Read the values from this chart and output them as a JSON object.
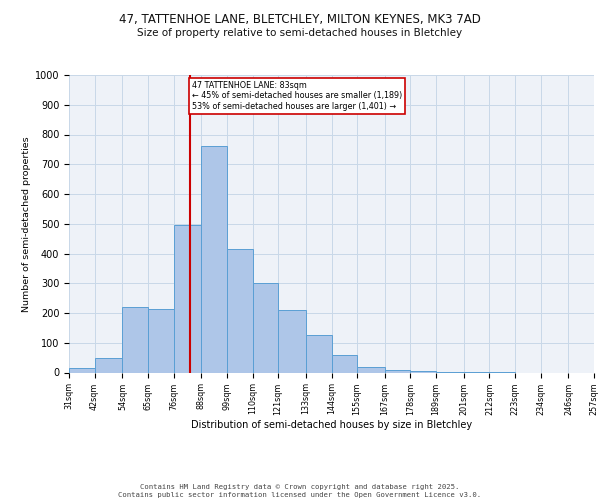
{
  "title1": "47, TATTENHOE LANE, BLETCHLEY, MILTON KEYNES, MK3 7AD",
  "title2": "Size of property relative to semi-detached houses in Bletchley",
  "xlabel": "Distribution of semi-detached houses by size in Bletchley",
  "ylabel": "Number of semi-detached properties",
  "bin_labels": [
    "31sqm",
    "42sqm",
    "54sqm",
    "65sqm",
    "76sqm",
    "88sqm",
    "99sqm",
    "110sqm",
    "121sqm",
    "133sqm",
    "144sqm",
    "155sqm",
    "167sqm",
    "178sqm",
    "189sqm",
    "201sqm",
    "212sqm",
    "223sqm",
    "234sqm",
    "246sqm",
    "257sqm"
  ],
  "bin_edges": [
    31,
    42,
    54,
    65,
    76,
    88,
    99,
    110,
    121,
    133,
    144,
    155,
    167,
    178,
    189,
    201,
    212,
    223,
    234,
    246,
    257
  ],
  "bar_heights": [
    15,
    50,
    220,
    215,
    495,
    760,
    415,
    300,
    210,
    125,
    60,
    20,
    10,
    5,
    2,
    1,
    1,
    0,
    0,
    0
  ],
  "bar_facecolor": "#aec6e8",
  "bar_edgecolor": "#5a9fd4",
  "property_line_x": 83,
  "vline_color": "#cc0000",
  "annotation_text": "47 TATTENHOE LANE: 83sqm\n← 45% of semi-detached houses are smaller (1,189)\n53% of semi-detached houses are larger (1,401) →",
  "annotation_box_color": "#cc0000",
  "ylim": [
    0,
    1000
  ],
  "yticks": [
    0,
    100,
    200,
    300,
    400,
    500,
    600,
    700,
    800,
    900,
    1000
  ],
  "grid_color": "#c8d8e8",
  "bg_color": "#eef2f8",
  "footer": "Contains HM Land Registry data © Crown copyright and database right 2025.\nContains public sector information licensed under the Open Government Licence v3.0.",
  "title_fontsize": 8.5,
  "subtitle_fontsize": 7.5,
  "footer_fontsize": 5.2
}
